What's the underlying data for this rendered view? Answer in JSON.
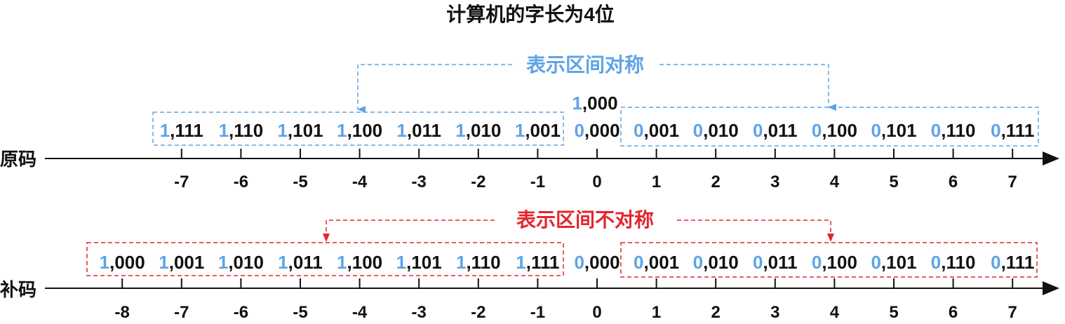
{
  "title": "计算机的字长为4位",
  "colors": {
    "blue": "#5fa3e6",
    "red": "#e3262e",
    "text": "#111111"
  },
  "sign_magnitude": {
    "axis_label": "原码",
    "annotation": "表示区间对称",
    "ticks": [
      "-7",
      "-6",
      "-5",
      "-4",
      "-3",
      "-2",
      "-1",
      "0",
      "1",
      "2",
      "3",
      "4",
      "5",
      "6",
      "7"
    ],
    "codes": [
      {
        "value": -7,
        "sign": "1",
        "rest": ",111"
      },
      {
        "value": -6,
        "sign": "1",
        "rest": ",110"
      },
      {
        "value": -5,
        "sign": "1",
        "rest": ",101"
      },
      {
        "value": -4,
        "sign": "1",
        "rest": ",100"
      },
      {
        "value": -3,
        "sign": "1",
        "rest": ",011"
      },
      {
        "value": -2,
        "sign": "1",
        "rest": ",010"
      },
      {
        "value": -1,
        "sign": "1",
        "rest": ",001"
      },
      {
        "value": 0,
        "sign": "0",
        "rest": ",000"
      },
      {
        "value": 1,
        "sign": "0",
        "rest": ",001"
      },
      {
        "value": 2,
        "sign": "0",
        "rest": ",010"
      },
      {
        "value": 3,
        "sign": "0",
        "rest": ",011"
      },
      {
        "value": 4,
        "sign": "0",
        "rest": ",100"
      },
      {
        "value": 5,
        "sign": "0",
        "rest": ",101"
      },
      {
        "value": 6,
        "sign": "0",
        "rest": ",110"
      },
      {
        "value": 7,
        "sign": "0",
        "rest": ",111"
      }
    ],
    "negative_zero": {
      "sign": "1",
      "rest": ",000"
    }
  },
  "twos_complement": {
    "axis_label": "补码",
    "annotation": "表示区间不对称",
    "ticks": [
      "-8",
      "-7",
      "-6",
      "-5",
      "-4",
      "-3",
      "-2",
      "-1",
      "0",
      "1",
      "2",
      "3",
      "4",
      "5",
      "6",
      "7"
    ],
    "codes": [
      {
        "value": -8,
        "sign": "1",
        "rest": ",000"
      },
      {
        "value": -7,
        "sign": "1",
        "rest": ",001"
      },
      {
        "value": -6,
        "sign": "1",
        "rest": ",010"
      },
      {
        "value": -5,
        "sign": "1",
        "rest": ",011"
      },
      {
        "value": -4,
        "sign": "1",
        "rest": ",100"
      },
      {
        "value": -3,
        "sign": "1",
        "rest": ",101"
      },
      {
        "value": -2,
        "sign": "1",
        "rest": ",110"
      },
      {
        "value": -1,
        "sign": "1",
        "rest": ",111"
      },
      {
        "value": 0,
        "sign": "0",
        "rest": ",000"
      },
      {
        "value": 1,
        "sign": "0",
        "rest": ",001"
      },
      {
        "value": 2,
        "sign": "0",
        "rest": ",010"
      },
      {
        "value": 3,
        "sign": "0",
        "rest": ",011"
      },
      {
        "value": 4,
        "sign": "0",
        "rest": ",100"
      },
      {
        "value": 5,
        "sign": "0",
        "rest": ",101"
      },
      {
        "value": 6,
        "sign": "0",
        "rest": ",110"
      },
      {
        "value": 7,
        "sign": "0",
        "rest": ",111"
      }
    ]
  }
}
